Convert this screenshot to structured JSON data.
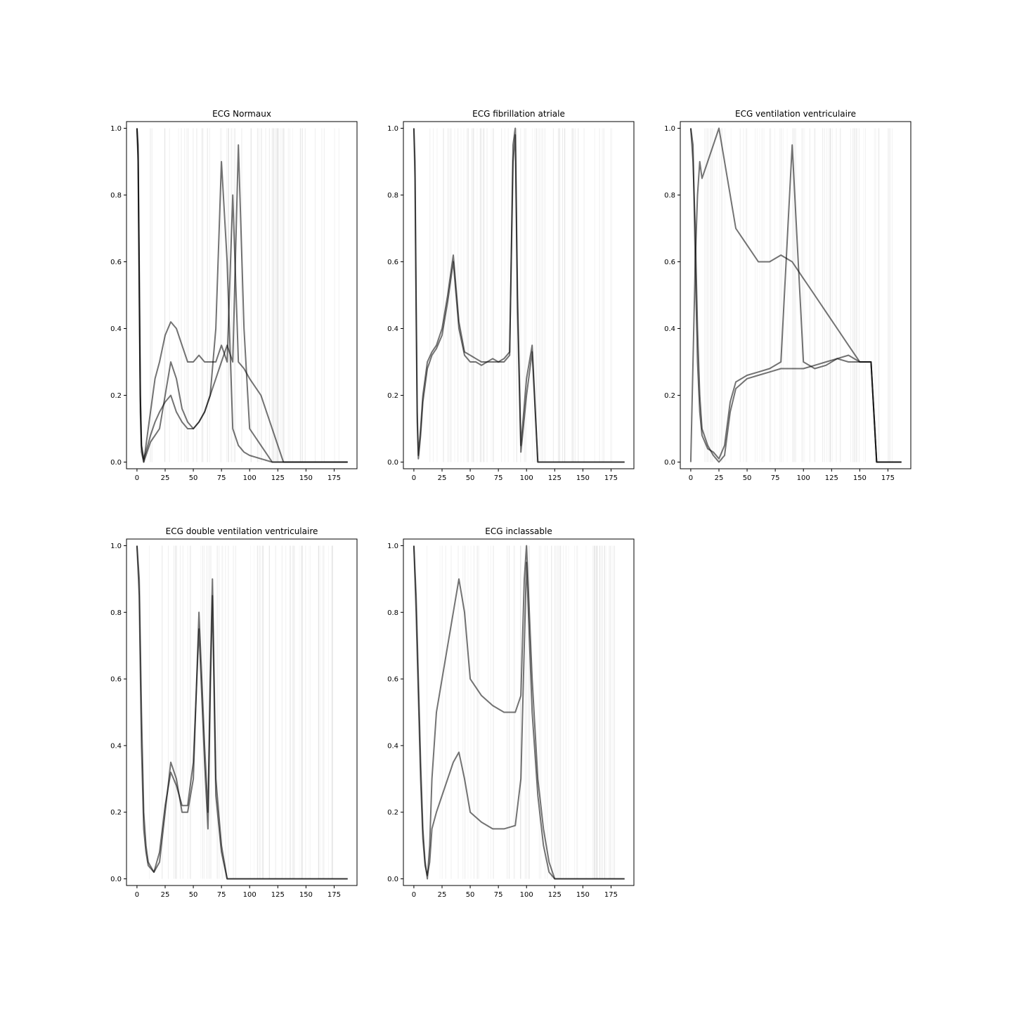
{
  "chart_data": [
    {
      "type": "line",
      "title": "ECG Normaux",
      "xlim": [
        -9.3,
        195.3
      ],
      "ylim": [
        -0.02,
        1.02
      ],
      "xticks": [
        0,
        25,
        50,
        75,
        100,
        125,
        150,
        175
      ],
      "yticks": [
        0.0,
        0.2,
        0.4,
        0.6,
        0.8,
        1.0
      ],
      "grid": false,
      "series": [
        {
          "x": [
            0,
            1,
            2,
            3,
            4,
            6,
            8,
            12,
            16,
            20,
            25,
            30,
            35,
            40,
            45,
            50,
            55,
            60,
            65,
            70,
            75,
            80,
            85,
            90,
            95,
            100,
            110,
            120,
            130,
            150,
            187
          ],
          "y": [
            1.0,
            0.95,
            0.6,
            0.2,
            0.05,
            0.0,
            0.02,
            0.06,
            0.08,
            0.1,
            0.2,
            0.3,
            0.25,
            0.16,
            0.12,
            0.1,
            0.12,
            0.15,
            0.2,
            0.4,
            0.9,
            0.6,
            0.1,
            0.05,
            0.03,
            0.02,
            0.01,
            0.0,
            0.0,
            0.0,
            0.0
          ]
        },
        {
          "x": [
            0,
            1,
            2,
            3,
            4,
            6,
            8,
            12,
            16,
            20,
            25,
            30,
            35,
            40,
            45,
            50,
            55,
            60,
            65,
            70,
            75,
            80,
            85,
            90,
            95,
            100,
            110,
            120,
            130,
            150,
            187
          ],
          "y": [
            1.0,
            0.9,
            0.5,
            0.15,
            0.03,
            0.0,
            0.05,
            0.15,
            0.25,
            0.3,
            0.38,
            0.42,
            0.4,
            0.35,
            0.3,
            0.3,
            0.32,
            0.3,
            0.3,
            0.3,
            0.35,
            0.3,
            0.8,
            0.3,
            0.28,
            0.25,
            0.2,
            0.1,
            0.0,
            0.0,
            0.0
          ]
        },
        {
          "x": [
            0,
            1,
            2,
            3,
            4,
            6,
            8,
            12,
            16,
            20,
            25,
            30,
            35,
            40,
            45,
            50,
            55,
            60,
            65,
            70,
            75,
            80,
            85,
            90,
            95,
            100,
            110,
            120,
            130,
            150,
            187
          ],
          "y": [
            1.0,
            0.92,
            0.55,
            0.2,
            0.05,
            0.01,
            0.03,
            0.08,
            0.12,
            0.15,
            0.18,
            0.2,
            0.15,
            0.12,
            0.1,
            0.1,
            0.12,
            0.15,
            0.2,
            0.25,
            0.3,
            0.35,
            0.3,
            0.95,
            0.4,
            0.1,
            0.05,
            0.0,
            0.0,
            0.0,
            0.0
          ]
        }
      ]
    },
    {
      "type": "line",
      "title": "ECG fibrillation atriale",
      "xlim": [
        -9.3,
        195.3
      ],
      "ylim": [
        -0.02,
        1.02
      ],
      "xticks": [
        0,
        25,
        50,
        75,
        100,
        125,
        150,
        175
      ],
      "yticks": [
        0.0,
        0.2,
        0.4,
        0.6,
        0.8,
        1.0
      ],
      "grid": false,
      "series": [
        {
          "x": [
            0,
            1,
            2,
            3,
            4,
            6,
            8,
            12,
            16,
            20,
            25,
            30,
            35,
            40,
            45,
            50,
            55,
            60,
            65,
            70,
            75,
            80,
            85,
            88,
            90,
            92,
            95,
            100,
            105,
            110,
            130,
            187
          ],
          "y": [
            1.0,
            0.9,
            0.5,
            0.15,
            0.02,
            0.1,
            0.2,
            0.3,
            0.33,
            0.35,
            0.4,
            0.5,
            0.62,
            0.42,
            0.33,
            0.32,
            0.31,
            0.3,
            0.3,
            0.31,
            0.3,
            0.3,
            0.32,
            0.95,
            1.0,
            0.5,
            0.05,
            0.25,
            0.35,
            0.0,
            0.0,
            0.0
          ]
        },
        {
          "x": [
            0,
            1,
            2,
            3,
            4,
            6,
            8,
            12,
            16,
            20,
            25,
            30,
            35,
            40,
            45,
            50,
            55,
            60,
            65,
            70,
            75,
            80,
            85,
            88,
            90,
            92,
            95,
            100,
            105,
            110,
            130,
            187
          ],
          "y": [
            1.0,
            0.85,
            0.45,
            0.12,
            0.01,
            0.08,
            0.18,
            0.28,
            0.32,
            0.34,
            0.38,
            0.48,
            0.6,
            0.4,
            0.32,
            0.3,
            0.3,
            0.29,
            0.3,
            0.3,
            0.3,
            0.31,
            0.33,
            0.9,
            0.98,
            0.45,
            0.03,
            0.2,
            0.33,
            0.0,
            0.0,
            0.0
          ]
        }
      ]
    },
    {
      "type": "line",
      "title": "ECG ventilation ventriculaire",
      "xlim": [
        -9.3,
        195.3
      ],
      "ylim": [
        -0.02,
        1.02
      ],
      "xticks": [
        0,
        25,
        50,
        75,
        100,
        125,
        150,
        175
      ],
      "yticks": [
        0.0,
        0.2,
        0.4,
        0.6,
        0.8,
        1.0
      ],
      "grid": false,
      "series": [
        {
          "x": [
            0,
            2,
            4,
            6,
            8,
            10,
            15,
            20,
            25,
            30,
            35,
            40,
            50,
            60,
            70,
            80,
            90,
            100,
            110,
            120,
            130,
            140,
            150,
            160,
            165,
            170,
            187
          ],
          "y": [
            1.0,
            0.9,
            0.7,
            0.4,
            0.2,
            0.1,
            0.05,
            0.02,
            0.0,
            0.02,
            0.15,
            0.22,
            0.25,
            0.26,
            0.27,
            0.28,
            0.28,
            0.28,
            0.29,
            0.3,
            0.31,
            0.3,
            0.3,
            0.3,
            0.0,
            0.0,
            0.0
          ]
        },
        {
          "x": [
            0,
            2,
            4,
            6,
            8,
            10,
            15,
            20,
            25,
            30,
            35,
            40,
            50,
            60,
            70,
            80,
            90,
            100,
            110,
            120,
            130,
            140,
            150,
            160,
            165,
            170,
            187
          ],
          "y": [
            0.0,
            0.3,
            0.6,
            0.8,
            0.9,
            0.85,
            0.9,
            0.95,
            1.0,
            0.9,
            0.8,
            0.7,
            0.65,
            0.6,
            0.6,
            0.62,
            0.6,
            0.55,
            0.5,
            0.45,
            0.4,
            0.35,
            0.3,
            0.3,
            0.0,
            0.0,
            0.0
          ]
        },
        {
          "x": [
            0,
            2,
            4,
            6,
            8,
            10,
            15,
            20,
            25,
            30,
            35,
            40,
            50,
            60,
            70,
            80,
            90,
            100,
            110,
            120,
            130,
            140,
            150,
            160,
            165,
            170,
            187
          ],
          "y": [
            1.0,
            0.95,
            0.6,
            0.3,
            0.15,
            0.08,
            0.04,
            0.03,
            0.01,
            0.05,
            0.18,
            0.24,
            0.26,
            0.27,
            0.28,
            0.3,
            0.95,
            0.3,
            0.28,
            0.29,
            0.31,
            0.32,
            0.3,
            0.3,
            0.0,
            0.0,
            0.0
          ]
        }
      ]
    },
    {
      "type": "line",
      "title": "ECG double ventilation ventriculaire",
      "xlim": [
        -9.3,
        195.3
      ],
      "ylim": [
        -0.02,
        1.02
      ],
      "xticks": [
        0,
        25,
        50,
        75,
        100,
        125,
        150,
        175
      ],
      "yticks": [
        0.0,
        0.2,
        0.4,
        0.6,
        0.8,
        1.0
      ],
      "grid": false,
      "series": [
        {
          "x": [
            0,
            2,
            4,
            6,
            8,
            10,
            15,
            20,
            25,
            30,
            35,
            40,
            45,
            50,
            55,
            60,
            63,
            65,
            67,
            70,
            75,
            80,
            85,
            90,
            187
          ],
          "y": [
            1.0,
            0.9,
            0.5,
            0.2,
            0.1,
            0.05,
            0.02,
            0.05,
            0.2,
            0.35,
            0.3,
            0.2,
            0.2,
            0.3,
            0.8,
            0.4,
            0.2,
            0.6,
            0.9,
            0.3,
            0.1,
            0.0,
            0.0,
            0.0,
            0.0
          ]
        },
        {
          "x": [
            0,
            2,
            4,
            6,
            8,
            10,
            15,
            20,
            25,
            30,
            35,
            40,
            45,
            50,
            55,
            60,
            63,
            65,
            67,
            70,
            75,
            80,
            85,
            90,
            187
          ],
          "y": [
            1.0,
            0.85,
            0.4,
            0.15,
            0.08,
            0.04,
            0.02,
            0.08,
            0.22,
            0.32,
            0.28,
            0.22,
            0.22,
            0.35,
            0.75,
            0.35,
            0.15,
            0.55,
            0.85,
            0.25,
            0.08,
            0.0,
            0.0,
            0.0,
            0.0
          ]
        }
      ]
    },
    {
      "type": "line",
      "title": "ECG inclassable",
      "xlim": [
        -9.3,
        195.3
      ],
      "ylim": [
        -0.02,
        1.02
      ],
      "xticks": [
        0,
        25,
        50,
        75,
        100,
        125,
        150,
        175
      ],
      "yticks": [
        0.0,
        0.2,
        0.4,
        0.6,
        0.8,
        1.0
      ],
      "grid": false,
      "series": [
        {
          "x": [
            0,
            2,
            4,
            6,
            8,
            10,
            12,
            14,
            16,
            20,
            25,
            30,
            35,
            40,
            45,
            50,
            60,
            70,
            80,
            90,
            95,
            98,
            100,
            105,
            110,
            115,
            120,
            125,
            130,
            187
          ],
          "y": [
            1.0,
            0.85,
            0.6,
            0.35,
            0.15,
            0.05,
            0.0,
            0.1,
            0.3,
            0.5,
            0.6,
            0.7,
            0.8,
            0.9,
            0.8,
            0.6,
            0.55,
            0.52,
            0.5,
            0.5,
            0.55,
            0.9,
            1.0,
            0.6,
            0.3,
            0.15,
            0.05,
            0.0,
            0.0,
            0.0
          ]
        },
        {
          "x": [
            0,
            2,
            4,
            6,
            8,
            10,
            12,
            14,
            16,
            20,
            25,
            30,
            35,
            40,
            45,
            50,
            60,
            70,
            80,
            90,
            95,
            98,
            100,
            105,
            110,
            115,
            120,
            125,
            130,
            187
          ],
          "y": [
            1.0,
            0.8,
            0.55,
            0.3,
            0.12,
            0.04,
            0.01,
            0.05,
            0.15,
            0.2,
            0.25,
            0.3,
            0.35,
            0.38,
            0.3,
            0.2,
            0.17,
            0.15,
            0.15,
            0.16,
            0.3,
            0.7,
            0.95,
            0.5,
            0.25,
            0.1,
            0.02,
            0.0,
            0.0,
            0.0
          ]
        }
      ]
    }
  ]
}
